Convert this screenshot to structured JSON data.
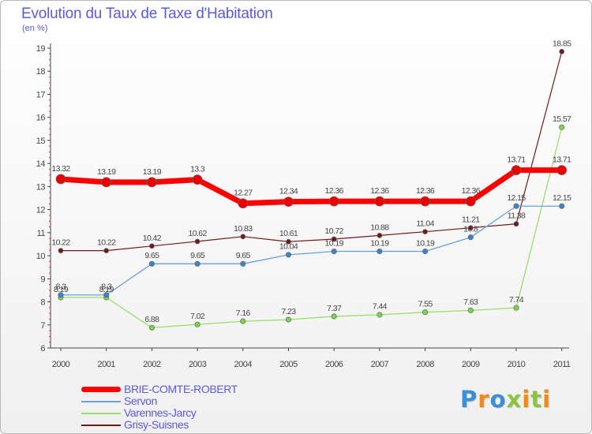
{
  "title": "Evolution du Taux de Taxe d'Habitation",
  "subtitle": "(en %)",
  "logo": {
    "letters": [
      "P",
      "r",
      "o",
      "x",
      "i",
      "t",
      "i"
    ],
    "colors": [
      "#3b8fd4",
      "#f08a1c",
      "#3b8fd4",
      "#8cc63f",
      "#f08a1c",
      "#8cc63f",
      "#f08a1c"
    ]
  },
  "chart_data": {
    "type": "line",
    "title": "Evolution du Taux de Taxe d'Habitation",
    "ylabel": "(en %)",
    "xlabel": "",
    "ylim": [
      6,
      19
    ],
    "yticks": [
      "6",
      "7",
      "8",
      "9",
      "10",
      "11",
      "12",
      "13",
      "14",
      "15",
      "16",
      "17",
      "18",
      "19"
    ],
    "x": [
      "2000",
      "2001",
      "2002",
      "2003",
      "2004",
      "2005",
      "2006",
      "2007",
      "2008",
      "2009",
      "2010",
      "2011"
    ],
    "series": [
      {
        "name": "Grisy-Suisnes",
        "color": "#6e1a1a",
        "dot": "#6e1a1a",
        "width": 1.2,
        "r": 3,
        "values": [
          10.22,
          10.22,
          10.42,
          10.62,
          10.83,
          10.61,
          10.72,
          10.88,
          11.04,
          11.21,
          11.38,
          18.85
        ],
        "labels": [
          "10.22",
          "10.22",
          "10.42",
          "10.62",
          "10.83",
          "10.61",
          "10.72",
          "10.88",
          "11.04",
          "11.21",
          "11.38",
          "18.85"
        ]
      },
      {
        "name": "Varennes-Jarcy",
        "color": "#98e06a",
        "dot": "#7cd44a",
        "width": 1.3,
        "r": 3.2,
        "values": [
          8.19,
          8.19,
          6.88,
          7.02,
          7.16,
          7.23,
          7.37,
          7.44,
          7.55,
          7.63,
          7.74,
          15.57
        ],
        "labels": [
          "8.19",
          "8.19",
          "6.88",
          "7.02",
          "7.16",
          "7.23",
          "7.37",
          "7.44",
          "7.55",
          "7.63",
          "7.74",
          "15.57"
        ]
      },
      {
        "name": "Servon",
        "color": "#6aa0d8",
        "dot": "#3d82cc",
        "width": 1.3,
        "r": 3.2,
        "values": [
          8.3,
          8.3,
          9.65,
          9.65,
          9.65,
          10.04,
          10.19,
          10.19,
          10.19,
          10.8,
          12.15,
          12.15
        ],
        "labels": [
          "8.3",
          "8.3",
          "9.65",
          "9.65",
          "9.65",
          "10.04",
          "10.19",
          "10.19",
          "10.19",
          "10.8",
          "12.15",
          "12.15"
        ]
      },
      {
        "name": "BRIE-COMTE-ROBERT",
        "color": "#ff0000",
        "dot": "#ee0000",
        "width": 7,
        "r": 6,
        "values": [
          13.32,
          13.19,
          13.19,
          13.3,
          12.27,
          12.34,
          12.36,
          12.36,
          12.36,
          12.36,
          13.71,
          13.71
        ],
        "labels": [
          "13.32",
          "13.19",
          "13.19",
          "13.3",
          "12.27",
          "12.34",
          "12.36",
          "12.36",
          "12.36",
          "12.36",
          "13.71",
          "13.71"
        ]
      }
    ],
    "legend": [
      {
        "name": "BRIE-COMTE-ROBERT",
        "color": "#ff0000",
        "thickness": 7
      },
      {
        "name": "Servon",
        "color": "#6aa0d8",
        "thickness": 2
      },
      {
        "name": "Varennes-Jarcy",
        "color": "#98e06a",
        "thickness": 2
      },
      {
        "name": "Grisy-Suisnes",
        "color": "#6e1a1a",
        "thickness": 2
      }
    ],
    "legend_position": "bottom-left",
    "grid": false
  }
}
